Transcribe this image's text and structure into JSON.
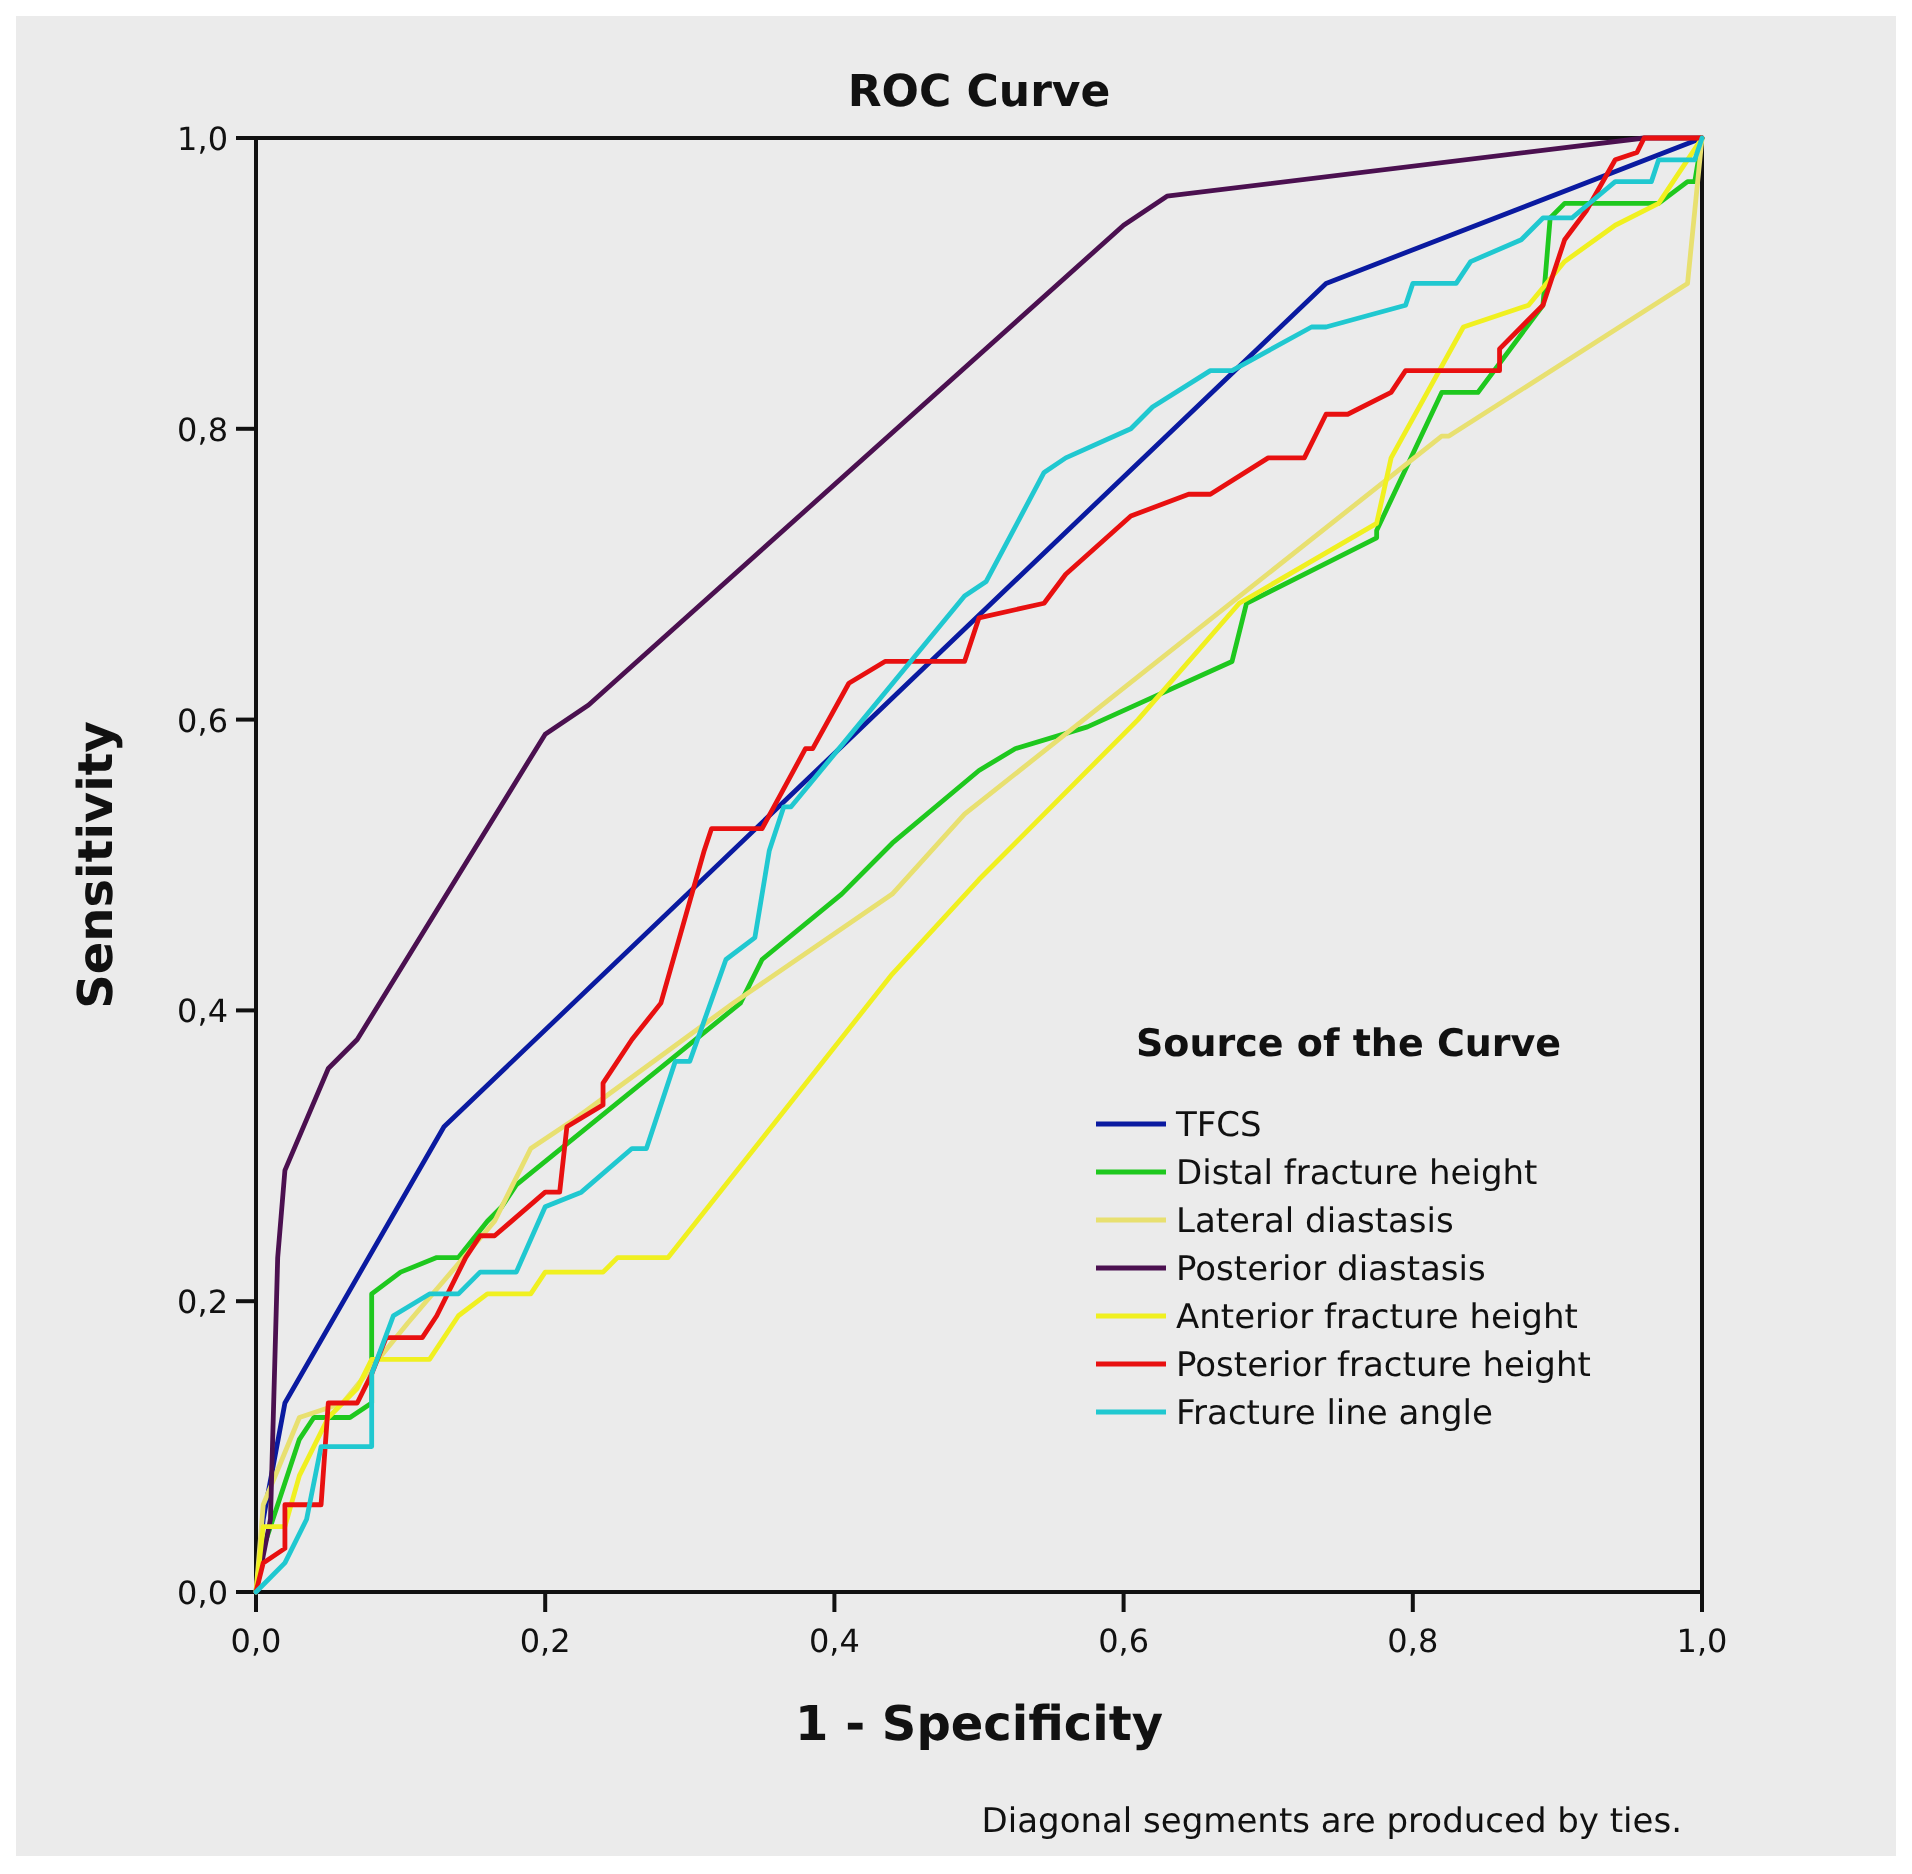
{
  "chart_data": {
    "type": "line",
    "title": "ROC Curve",
    "xlabel": "1 - Specificity",
    "ylabel": "Sensitivity",
    "legend_title": "Source of the Curve",
    "legend": "bottom right",
    "grid": false,
    "marker": "none",
    "line_style": "solid",
    "xlim": [
      0,
      1
    ],
    "ylim": [
      0,
      1
    ],
    "xticks": [
      {
        "value": 0,
        "label": "0,0"
      },
      {
        "value": 0.2,
        "label": "0,2"
      },
      {
        "value": 0.4,
        "label": "0,4"
      },
      {
        "value": 0.6,
        "label": "0,6"
      },
      {
        "value": 0.8,
        "label": "0,8"
      },
      {
        "value": 1,
        "label": "1,0"
      }
    ],
    "yticks": [
      {
        "value": 0,
        "label": "0,0"
      },
      {
        "value": 0.2,
        "label": "0,2"
      },
      {
        "value": 0.4,
        "label": "0,4"
      },
      {
        "value": 0.6,
        "label": "0,6"
      },
      {
        "value": 0.8,
        "label": "0,8"
      },
      {
        "value": 1,
        "label": "1,0"
      }
    ],
    "annotations": [
      "Diagonal segments are produced by ties."
    ],
    "series": [
      {
        "name": "TFCS",
        "color": "#0a1aa0",
        "x": [
          0,
          0.005,
          0.02,
          0.13,
          0.74,
          1
        ],
        "values": [
          0,
          0.05,
          0.13,
          0.32,
          0.9,
          1
        ]
      },
      {
        "name": "Distal fracture height",
        "color": "#1ec81e",
        "x": [
          0,
          0.005,
          0.03,
          0.04,
          0.065,
          0.08,
          0.08,
          0.1,
          0.125,
          0.14,
          0.16,
          0.17,
          0.18,
          0.335,
          0.35,
          0.405,
          0.44,
          0.5,
          0.525,
          0.575,
          0.675,
          0.685,
          0.775,
          0.775,
          0.82,
          0.845,
          0.89,
          0.895,
          0.905,
          0.97,
          0.99,
          0.995,
          1
        ],
        "values": [
          0,
          0.03,
          0.105,
          0.12,
          0.12,
          0.13,
          0.205,
          0.22,
          0.23,
          0.23,
          0.255,
          0.265,
          0.28,
          0.405,
          0.435,
          0.48,
          0.515,
          0.565,
          0.58,
          0.595,
          0.64,
          0.68,
          0.725,
          0.73,
          0.825,
          0.825,
          0.885,
          0.945,
          0.955,
          0.955,
          0.97,
          0.97,
          1
        ]
      },
      {
        "name": "Lateral diastasis",
        "color": "#e8e070",
        "x": [
          0,
          0.005,
          0.03,
          0.06,
          0.105,
          0.165,
          0.19,
          0.22,
          0.33,
          0.44,
          0.49,
          0.82,
          0.825,
          0.99,
          1
        ],
        "values": [
          0,
          0.06,
          0.12,
          0.13,
          0.185,
          0.255,
          0.305,
          0.325,
          0.405,
          0.48,
          0.535,
          0.795,
          0.795,
          0.9,
          1
        ]
      },
      {
        "name": "Posterior diastasis",
        "color": "#4b1050",
        "x": [
          0,
          0.01,
          0.015,
          0.02,
          0.05,
          0.07,
          0.2,
          0.23,
          0.6,
          0.63,
          0.96,
          1
        ],
        "values": [
          0,
          0.05,
          0.23,
          0.29,
          0.36,
          0.38,
          0.59,
          0.61,
          0.94,
          0.96,
          1,
          1
        ]
      },
      {
        "name": "Anterior fracture height",
        "color": "#f0f020",
        "x": [
          0,
          0.005,
          0.02,
          0.03,
          0.05,
          0.07,
          0.08,
          0.12,
          0.14,
          0.16,
          0.19,
          0.2,
          0.24,
          0.25,
          0.285,
          0.44,
          0.5,
          0.515,
          0.61,
          0.68,
          0.775,
          0.785,
          0.835,
          0.88,
          0.905,
          0.94,
          0.97,
          0.99,
          1
        ],
        "values": [
          0,
          0.045,
          0.045,
          0.08,
          0.12,
          0.14,
          0.16,
          0.16,
          0.19,
          0.205,
          0.205,
          0.22,
          0.22,
          0.23,
          0.23,
          0.425,
          0.49,
          0.505,
          0.6,
          0.68,
          0.735,
          0.78,
          0.87,
          0.885,
          0.915,
          0.94,
          0.955,
          0.985,
          1
        ]
      },
      {
        "name": "Posterior fracture height",
        "color": "#e81010",
        "x": [
          0,
          0.005,
          0.02,
          0.02,
          0.045,
          0.05,
          0.07,
          0.08,
          0.09,
          0.115,
          0.125,
          0.145,
          0.155,
          0.165,
          0.2,
          0.21,
          0.215,
          0.24,
          0.24,
          0.26,
          0.28,
          0.31,
          0.315,
          0.35,
          0.38,
          0.385,
          0.41,
          0.435,
          0.49,
          0.5,
          0.545,
          0.56,
          0.605,
          0.645,
          0.66,
          0.7,
          0.725,
          0.74,
          0.755,
          0.785,
          0.795,
          0.86,
          0.86,
          0.89,
          0.905,
          0.92,
          0.94,
          0.955,
          0.96,
          1
        ],
        "values": [
          0,
          0.02,
          0.03,
          0.06,
          0.06,
          0.13,
          0.13,
          0.15,
          0.175,
          0.175,
          0.19,
          0.23,
          0.245,
          0.245,
          0.275,
          0.275,
          0.32,
          0.335,
          0.35,
          0.38,
          0.405,
          0.51,
          0.525,
          0.525,
          0.58,
          0.58,
          0.625,
          0.64,
          0.64,
          0.67,
          0.68,
          0.7,
          0.74,
          0.755,
          0.755,
          0.78,
          0.78,
          0.81,
          0.81,
          0.825,
          0.84,
          0.84,
          0.855,
          0.885,
          0.93,
          0.95,
          0.985,
          0.99,
          1,
          1
        ]
      },
      {
        "name": "Fracture line angle",
        "color": "#20c8d0",
        "x": [
          0,
          0.02,
          0.035,
          0.045,
          0.08,
          0.08,
          0.095,
          0.12,
          0.14,
          0.155,
          0.18,
          0.2,
          0.225,
          0.26,
          0.27,
          0.29,
          0.3,
          0.325,
          0.345,
          0.355,
          0.365,
          0.37,
          0.49,
          0.505,
          0.545,
          0.56,
          0.605,
          0.62,
          0.66,
          0.675,
          0.73,
          0.74,
          0.795,
          0.8,
          0.83,
          0.84,
          0.875,
          0.89,
          0.91,
          0.94,
          0.965,
          0.97,
          0.995,
          1
        ],
        "values": [
          0,
          0.02,
          0.05,
          0.1,
          0.1,
          0.15,
          0.19,
          0.205,
          0.205,
          0.22,
          0.22,
          0.265,
          0.275,
          0.305,
          0.305,
          0.365,
          0.365,
          0.435,
          0.45,
          0.51,
          0.54,
          0.54,
          0.685,
          0.695,
          0.77,
          0.78,
          0.8,
          0.815,
          0.84,
          0.84,
          0.87,
          0.87,
          0.885,
          0.9,
          0.9,
          0.915,
          0.93,
          0.945,
          0.945,
          0.97,
          0.97,
          0.985,
          0.985,
          1
        ]
      }
    ]
  }
}
